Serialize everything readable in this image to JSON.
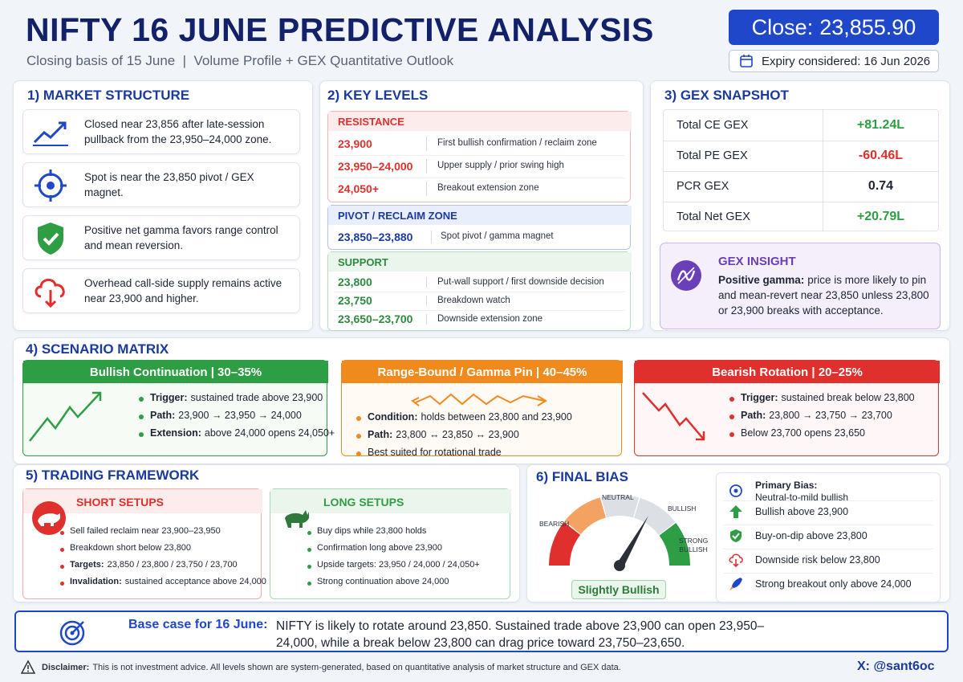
{
  "header": {
    "title": "NIFTY 16 JUNE PREDICTIVE ANALYSIS",
    "subtitle": "Closing basis of 15 June  |  Volume Profile + GEX Quantitative Outlook",
    "close_label": "Close:",
    "close_value": "23,855.90",
    "expiry": "Expiry considered: 16 Jun 2026"
  },
  "market_structure": {
    "title": "1) MARKET STRUCTURE",
    "items": [
      "Closed near 23,856 after late-session pullback from the 23,950–24,000 zone.",
      "Spot is near the 23,850 pivot / GEX magnet.",
      "Positive net gamma favors range control and mean reversion.",
      "Overhead call-side supply remains active near 23,900 and higher."
    ]
  },
  "key_levels": {
    "title": "2) KEY LEVELS",
    "groups": [
      {
        "title": "RESISTANCE",
        "rows": [
          [
            "23,900",
            "First bullish confirmation / reclaim zone"
          ],
          [
            "23,950–24,000",
            "Upper supply / prior swing high"
          ],
          [
            "24,050+",
            "Breakout extension zone"
          ]
        ]
      },
      {
        "title": "PIVOT / RECLAIM ZONE",
        "rows": [
          [
            "23,850–23,880",
            "Spot pivot / gamma magnet"
          ]
        ]
      },
      {
        "title": "SUPPORT",
        "rows": [
          [
            "23,800",
            "Put-wall support / first downside decision"
          ],
          [
            "23,750",
            "Breakdown watch"
          ],
          [
            "23,650–23,700",
            "Downside extension zone"
          ]
        ]
      }
    ]
  },
  "gex_snapshot": {
    "title": "3) GEX SNAPSHOT",
    "rows": [
      [
        "Total CE GEX",
        "+81.24L"
      ],
      [
        "Total PE GEX",
        "-60.46L"
      ],
      [
        "PCR GEX",
        "0.74"
      ],
      [
        "Total Net GEX",
        "+20.79L"
      ]
    ],
    "insight": {
      "title": "GEX INSIGHT",
      "bold": "Positive gamma:",
      "text": "price is more likely to pin and mean-revert near 23,850 unless 23,800 or 23,900 breaks with acceptance."
    }
  },
  "scenario_matrix": {
    "title": "4) SCENARIO MATRIX",
    "scenarios": [
      {
        "title": "Bullish Continuation | 30–35%",
        "items": [
          {
            "bold": "Trigger:",
            "text": "sustained trade above 23,900"
          },
          {
            "bold": "Path:",
            "text": "23,900 → 23,950 → 24,000"
          },
          {
            "bold": "Extension:",
            "text": "above 24,000 opens 24,050+"
          }
        ]
      },
      {
        "title": "Range-Bound / Gamma Pin | 40–45%",
        "items": [
          {
            "bold": "Condition:",
            "text": "holds between 23,800 and 23,900"
          },
          {
            "bold": "Path:",
            "text": "23,800 ↔ 23,850 ↔ 23,900"
          },
          "Best suited for rotational trade"
        ]
      },
      {
        "title": "Bearish Rotation | 20–25%",
        "items": [
          {
            "bold": "Trigger:",
            "text": "sustained break below 23,800"
          },
          {
            "bold": "Path:",
            "text": "23,800 → 23,750 → 23,700"
          },
          "Below 23,700 opens 23,650"
        ]
      }
    ]
  },
  "trading_framework": {
    "title": "5) TRADING FRAMEWORK",
    "setups": [
      {
        "title": "SHORT SETUPS",
        "items": [
          "Sell failed reclaim near 23,900–23,950",
          "Breakdown short below 23,800",
          {
            "bold": "Targets:",
            "text": "23,850 / 23,800 / 23,750 / 23,700"
          },
          {
            "bold": "Invalidation:",
            "text": "sustained acceptance above 24,000"
          }
        ]
      },
      {
        "title": "LONG SETUPS",
        "items": [
          "Buy dips while 23,800 holds",
          "Confirmation long above 23,900",
          "Upside targets: 23,950 / 24,000 / 24,050+",
          "Strong continuation above 24,000"
        ]
      }
    ]
  },
  "final_bias": {
    "title": "6) FINAL BIAS",
    "gauge_labels": [
      "BEARISH",
      "NEUTRAL",
      "BULLISH",
      "STRONG BULLISH"
    ],
    "result": "Slightly Bullish",
    "items": [
      {
        "bold": "Primary Bias:",
        "text": "Neutral-to-mild bullish"
      },
      "Bullish above 23,900",
      "Buy-on-dip above 23,800",
      "Downside risk below 23,800",
      "Strong breakout only above 24,000"
    ]
  },
  "base_case": {
    "label": "Base case for 16 June:",
    "text": "NIFTY is likely to rotate around 23,850. Sustained trade above 23,900 can open 23,950–24,000, while a break below 23,800 can drag price toward 23,750–23,650."
  },
  "footer": {
    "disclaimer_label": "Disclaimer:",
    "disclaimer": "This is not investment advice. All levels shown are system-generated, based on quantitative analysis of market structure and GEX data.",
    "handle": "X: @sant6oc"
  }
}
